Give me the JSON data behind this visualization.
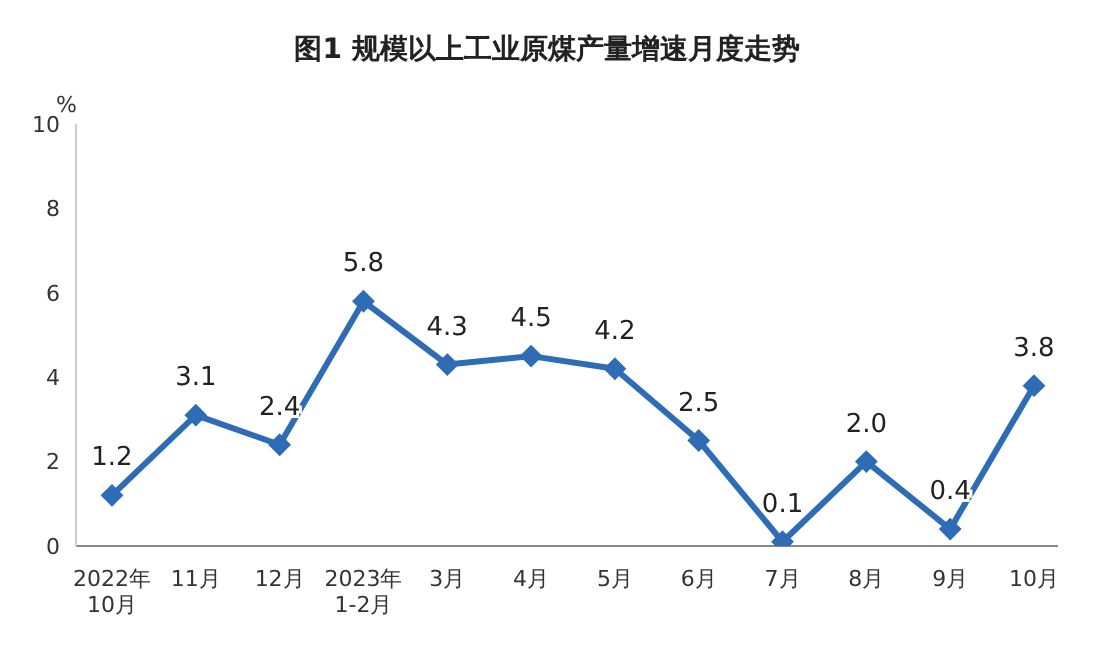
{
  "chart_data": {
    "type": "line",
    "title": "图1  规模以上工业原煤产量增速月度走势",
    "ylabel": "%",
    "categories": [
      "2022年\n10月",
      "11月",
      "12月",
      "2023年\n1-2月",
      "3月",
      "4月",
      "5月",
      "6月",
      "7月",
      "8月",
      "9月",
      "10月"
    ],
    "series": [
      {
        "color": "#2e6db5",
        "values": [
          1.2,
          3.1,
          2.4,
          5.8,
          4.3,
          4.5,
          4.2,
          2.5,
          0.1,
          2.0,
          0.4,
          3.8
        ],
        "value_labels": [
          "1.2",
          "3.1",
          "2.4",
          "5.8",
          "4.3",
          "4.5",
          "4.2",
          "2.5",
          "0.1",
          "2.0",
          "0.4",
          "3.8"
        ]
      }
    ],
    "ylim": [
      0,
      10
    ],
    "yticks": [
      0,
      2,
      4,
      6,
      8,
      10
    ],
    "marker": "diamond",
    "line_style": "solid",
    "grid": false,
    "legend": false
  }
}
